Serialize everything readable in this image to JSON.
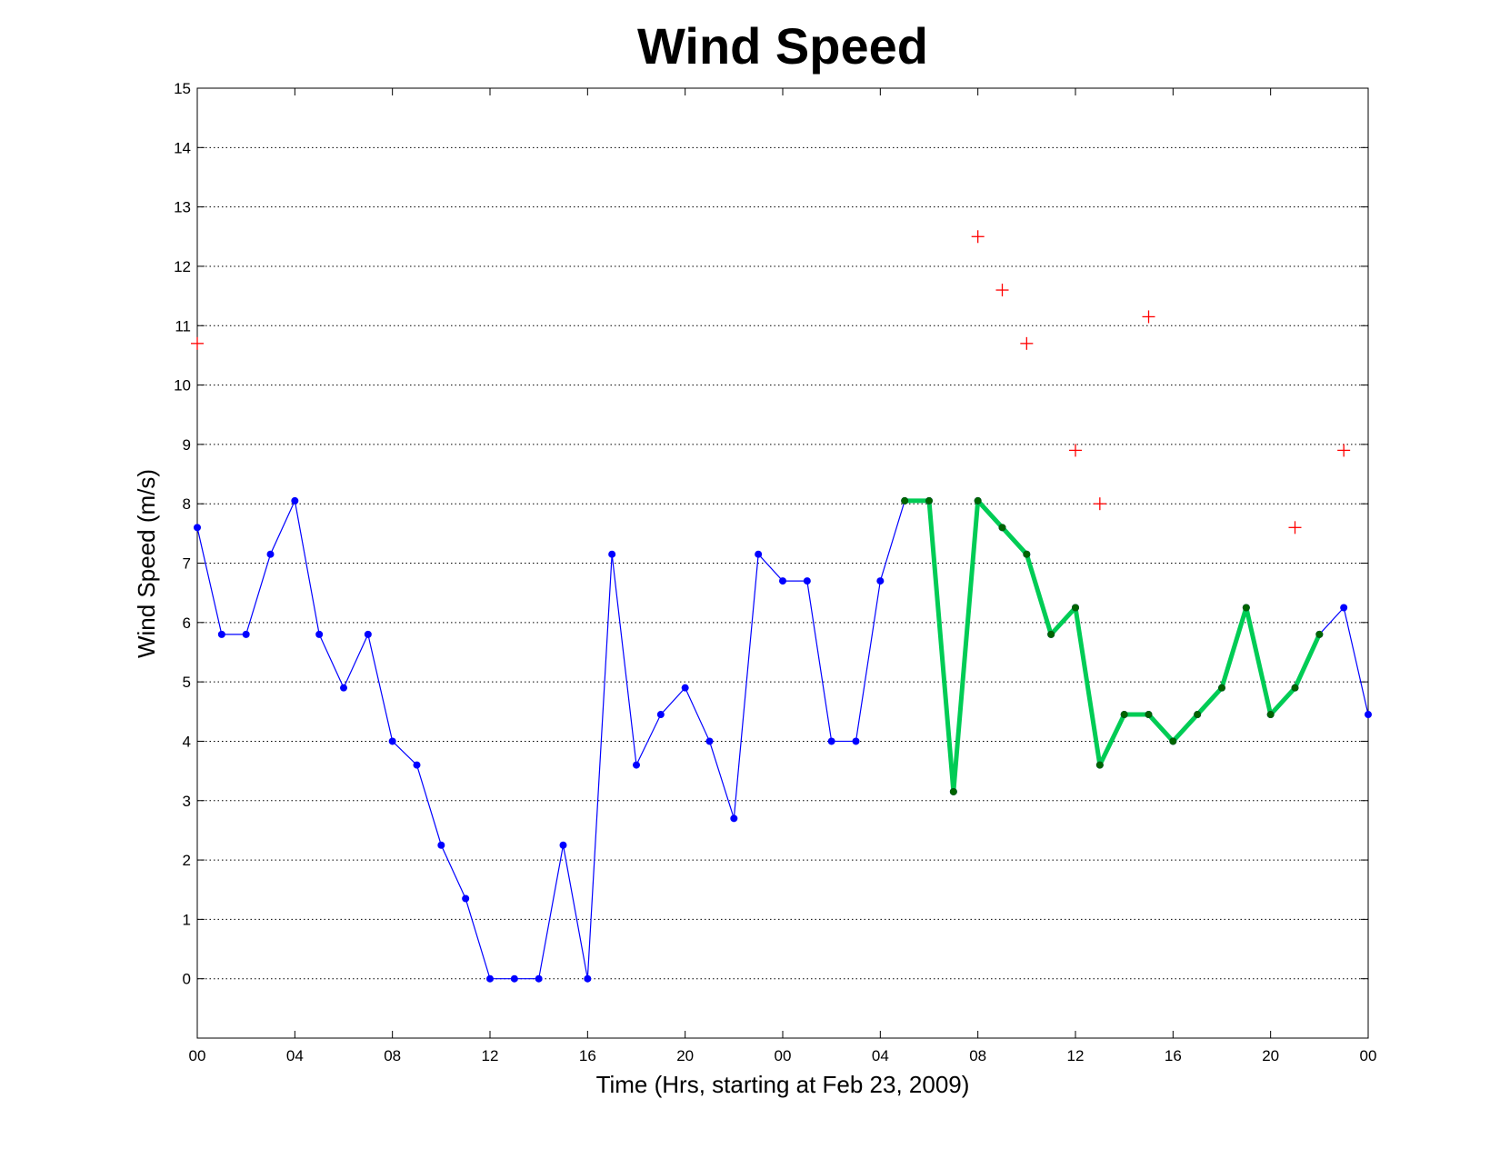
{
  "chart_data": {
    "type": "line",
    "title": "Wind Speed",
    "xlabel": "Time (Hrs, starting at Feb 23, 2009)",
    "ylabel": "Wind Speed (m/s)",
    "xlim": [
      0,
      48
    ],
    "ylim": [
      -1,
      15
    ],
    "grid": "horizontal dotted",
    "x_ticks": [
      0,
      4,
      8,
      12,
      16,
      20,
      24,
      28,
      32,
      36,
      40,
      44,
      48
    ],
    "x_tick_labels": [
      "00",
      "04",
      "08",
      "12",
      "16",
      "20",
      "00",
      "04",
      "08",
      "12",
      "16",
      "20",
      "00"
    ],
    "y_ticks": [
      0,
      1,
      2,
      3,
      4,
      5,
      6,
      7,
      8,
      9,
      10,
      11,
      12,
      13,
      14,
      15
    ],
    "series": [
      {
        "style": "thin line with dot markers",
        "color": "#0000ff",
        "x": [
          0,
          1,
          2,
          3,
          4,
          5,
          6,
          7,
          8,
          9,
          10,
          11,
          12,
          13,
          14,
          15,
          16,
          17,
          18,
          19,
          20,
          21,
          22,
          23,
          24,
          25,
          26,
          27,
          28,
          29,
          30,
          31,
          32,
          33,
          34,
          35,
          36,
          37,
          38,
          39,
          40,
          41,
          42,
          43,
          44,
          45,
          46,
          47,
          48
        ],
        "y": [
          7.6,
          5.8,
          5.8,
          7.15,
          8.05,
          5.8,
          4.9,
          5.8,
          4.0,
          3.6,
          2.25,
          1.35,
          0,
          0,
          0,
          2.25,
          0,
          7.15,
          3.6,
          4.45,
          4.9,
          4.0,
          2.7,
          7.15,
          6.7,
          6.7,
          4.0,
          4.0,
          6.7,
          8.05,
          8.05,
          3.15,
          8.05,
          7.6,
          7.15,
          5.8,
          6.25,
          3.6,
          4.45,
          4.45,
          4.0,
          4.45,
          4.9,
          6.25,
          4.45,
          4.9,
          5.8,
          6.25,
          4.45
        ]
      },
      {
        "style": "thick line with dark dot markers",
        "color": "#00cc55",
        "marker_color": "#006400",
        "x": [
          29,
          30,
          31,
          32,
          33,
          34,
          35,
          36,
          37,
          38,
          39,
          40,
          41,
          42,
          43,
          44,
          45,
          46
        ],
        "y": [
          8.05,
          8.05,
          3.15,
          8.05,
          7.6,
          7.15,
          5.8,
          6.25,
          3.6,
          4.45,
          4.45,
          4.0,
          4.45,
          4.9,
          6.25,
          4.45,
          4.9,
          5.8
        ]
      },
      {
        "style": "plus markers",
        "color": "#ff0000",
        "x": [
          0,
          32,
          33,
          34,
          36,
          37,
          39,
          45,
          47
        ],
        "y": [
          10.7,
          12.5,
          11.6,
          10.7,
          8.9,
          8.0,
          11.15,
          7.6,
          8.9
        ]
      }
    ]
  }
}
